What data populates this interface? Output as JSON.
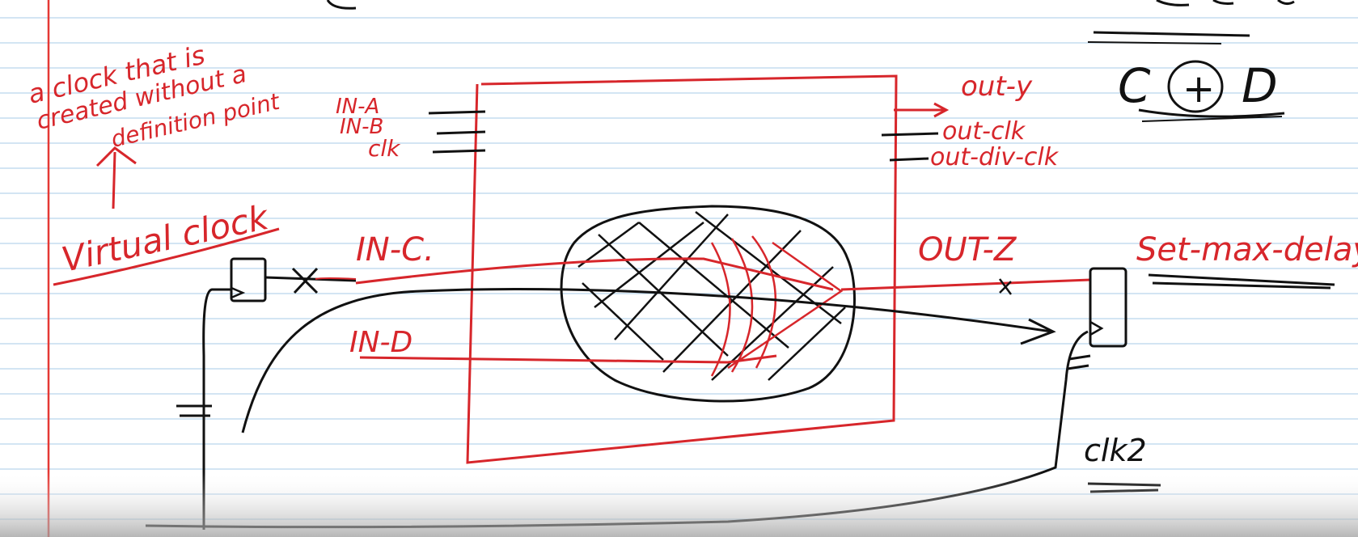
{
  "colors": {
    "paper": "#ffffff",
    "rule_line": "#b9d5ec",
    "margin_line": "#e53935",
    "red_ink": "#d7262b",
    "black_ink": "#111111",
    "bottom_shade": "#bdbdbd"
  },
  "notes": {
    "virtual_clock_def": [
      "a clock that is",
      "created without a",
      "definition point"
    ],
    "virtual_clock_label": "Virtual clock"
  },
  "block": {
    "inputs": [
      "IN-A",
      "IN-B",
      "clk"
    ],
    "outputs": [
      "out-y",
      "out-clk",
      "out-div-clk"
    ]
  },
  "paths": {
    "in_c": "IN-C.",
    "in_d": "IN-D",
    "out_z": "OUT-Z"
  },
  "constraints": {
    "set_max_delay": "Set-max-delay",
    "clk2": "clk2"
  },
  "corner": {
    "left": "C",
    "op": "+",
    "right": "D"
  }
}
